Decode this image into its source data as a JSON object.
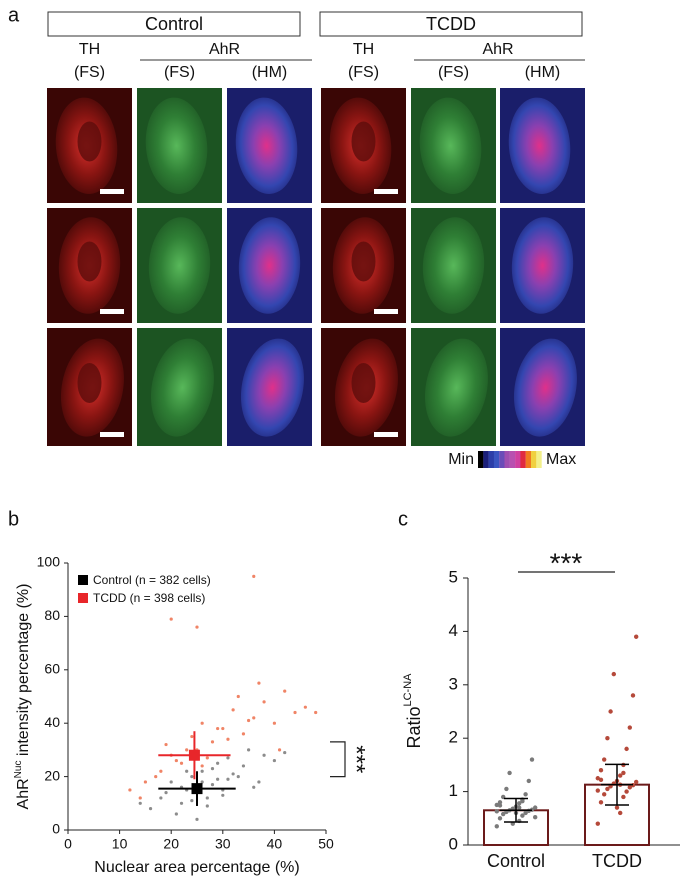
{
  "panel_a": {
    "label": "a",
    "groups": [
      {
        "title": "Control",
        "th": "TH",
        "th_mode": "(FS)",
        "ahr": "AhR",
        "ahr_modes": [
          "(FS)",
          "(HM)"
        ]
      },
      {
        "title": "TCDD",
        "th": "TH",
        "th_mode": "(FS)",
        "ahr": "AhR",
        "ahr_modes": [
          "(FS)",
          "(HM)"
        ]
      }
    ],
    "colorbar_min": "Min",
    "colorbar_max": "Max"
  },
  "chart_data": [
    {
      "type": "scatter",
      "label": "b",
      "xlabel": "Nuclear area percentage (%)",
      "ylabel": "AhR",
      "ylabel_sup": "Nuc",
      "ylabel_rest": " intensity percentage (%)",
      "xlim": [
        0,
        50
      ],
      "xticks": [
        0,
        10,
        20,
        30,
        40,
        50
      ],
      "ylim": [
        0,
        100
      ],
      "yticks": [
        0,
        20,
        40,
        60,
        80,
        100
      ],
      "annotation": "***",
      "bracket": [
        20,
        33
      ],
      "series": [
        {
          "name": "Control (n = 382 cells)",
          "color": "#000000",
          "point_color": "#8c8c8c",
          "x": [
            18,
            20,
            22,
            23,
            24,
            25,
            26,
            27,
            28,
            29,
            30,
            31,
            32,
            34,
            36,
            38,
            40,
            16,
            19,
            21,
            24,
            26,
            28,
            30,
            33,
            35,
            22,
            27,
            31,
            25,
            29,
            23,
            37,
            42,
            14
          ],
          "values": [
            12,
            18,
            10,
            15,
            20,
            14,
            22,
            9,
            17,
            25,
            13,
            19,
            21,
            24,
            16,
            28,
            26,
            8,
            14,
            6,
            11,
            18,
            23,
            15,
            20,
            30,
            16,
            12,
            27,
            4,
            19,
            22,
            18,
            29,
            10
          ],
          "mean_x": 25,
          "mean_y": 15.5,
          "x_err": 7.5,
          "y_err": 6.5
        },
        {
          "name": "TCDD (n = 398 cells)",
          "color": "#e8262a",
          "point_color": "#f08466",
          "x": [
            12,
            15,
            18,
            20,
            22,
            24,
            25,
            26,
            27,
            28,
            30,
            32,
            34,
            36,
            38,
            40,
            42,
            44,
            46,
            14,
            17,
            19,
            21,
            23,
            26,
            29,
            31,
            33,
            35,
            37,
            20,
            25,
            36,
            41,
            48
          ],
          "values": [
            15,
            18,
            22,
            28,
            25,
            35,
            30,
            40,
            27,
            33,
            38,
            45,
            36,
            42,
            48,
            40,
            52,
            44,
            46,
            12,
            20,
            32,
            26,
            30,
            24,
            38,
            34,
            50,
            41,
            55,
            79,
            76,
            95,
            30,
            44
          ],
          "mean_x": 24.5,
          "mean_y": 28,
          "x_err": 7,
          "y_err": 9
        }
      ]
    },
    {
      "type": "bar",
      "label": "c",
      "ylabel": "Ratio",
      "ylabel_sup": "LC-NA",
      "categories": [
        "Control",
        "TCDD"
      ],
      "values": [
        0.65,
        1.13
      ],
      "errors": [
        0.22,
        0.38
      ],
      "color": "#6b1a1a",
      "point_colors": [
        "#7a7a7a",
        "#b5493a"
      ],
      "points": [
        [
          0.35,
          0.45,
          0.5,
          0.55,
          0.58,
          0.6,
          0.62,
          0.64,
          0.65,
          0.66,
          0.68,
          0.7,
          0.72,
          0.75,
          0.78,
          0.8,
          0.85,
          0.9,
          0.95,
          1.05,
          1.2,
          1.35,
          1.6,
          0.4,
          0.52,
          0.6,
          0.63,
          0.7,
          0.74,
          0.82
        ],
        [
          0.4,
          0.6,
          0.8,
          0.9,
          0.95,
          1.0,
          1.05,
          1.08,
          1.1,
          1.12,
          1.15,
          1.18,
          1.2,
          1.25,
          1.3,
          1.4,
          1.5,
          1.6,
          1.8,
          2.0,
          2.2,
          2.5,
          2.8,
          3.2,
          3.9,
          0.7,
          1.02,
          1.13,
          1.22,
          1.35
        ]
      ],
      "ylim": [
        0,
        5
      ],
      "yticks": [
        0,
        1,
        2,
        3,
        4,
        5
      ],
      "annotation": "***"
    }
  ]
}
